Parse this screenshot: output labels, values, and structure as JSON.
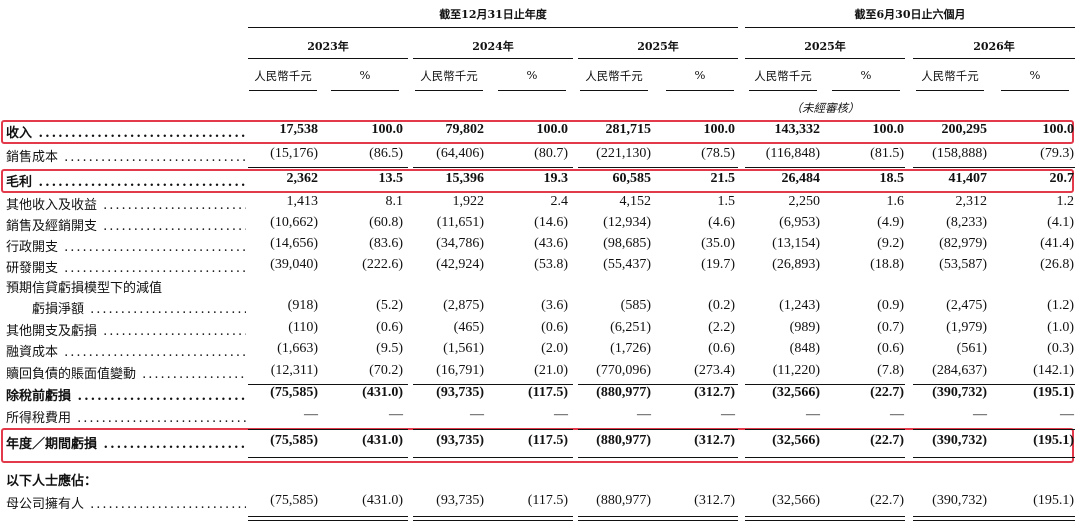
{
  "header": {
    "group1": "截至12月31日止年度",
    "group2": "截至6月30日止六個月",
    "years": [
      "2023年",
      "2024年",
      "2025年",
      "2025年",
      "2026年"
    ],
    "unit_rmb": "人民幣千元",
    "unit_pct": "%",
    "unaudited": "（未經審核）"
  },
  "rows": [
    {
      "label": "收入",
      "values": [
        "17,538",
        "100.0",
        "79,802",
        "100.0",
        "281,715",
        "100.0",
        "143,332",
        "100.0",
        "200,295",
        "100.0"
      ]
    },
    {
      "label": "銷售成本",
      "values": [
        "(15,176)",
        "(86.5)",
        "(64,406)",
        "(80.7)",
        "(221,130)",
        "(78.5)",
        "(116,848)",
        "(81.5)",
        "(158,888)",
        "(79.3)"
      ]
    },
    {
      "label": "毛利",
      "values": [
        "2,362",
        "13.5",
        "15,396",
        "19.3",
        "60,585",
        "21.5",
        "26,484",
        "18.5",
        "41,407",
        "20.7"
      ]
    },
    {
      "label": "其他收入及收益",
      "values": [
        "1,413",
        "8.1",
        "1,922",
        "2.4",
        "4,152",
        "1.5",
        "2,250",
        "1.6",
        "2,312",
        "1.2"
      ]
    },
    {
      "label": "銷售及經銷開支",
      "values": [
        "(10,662)",
        "(60.8)",
        "(11,651)",
        "(14.6)",
        "(12,934)",
        "(4.6)",
        "(6,953)",
        "(4.9)",
        "(8,233)",
        "(4.1)"
      ]
    },
    {
      "label": "行政開支",
      "values": [
        "(14,656)",
        "(83.6)",
        "(34,786)",
        "(43.6)",
        "(98,685)",
        "(35.0)",
        "(13,154)",
        "(9.2)",
        "(82,979)",
        "(41.4)"
      ]
    },
    {
      "label": "研發開支",
      "values": [
        "(39,040)",
        "(222.6)",
        "(42,924)",
        "(53.8)",
        "(55,437)",
        "(19.7)",
        "(26,893)",
        "(18.8)",
        "(53,587)",
        "(26.8)"
      ]
    },
    {
      "label": "預期信貸虧損模型下的減值",
      "values": []
    },
    {
      "label": "虧損淨額",
      "values": [
        "(918)",
        "(5.2)",
        "(2,875)",
        "(3.6)",
        "(585)",
        "(0.2)",
        "(1,243)",
        "(0.9)",
        "(2,475)",
        "(1.2)"
      ]
    },
    {
      "label": "其他開支及虧損",
      "values": [
        "(110)",
        "(0.6)",
        "(465)",
        "(0.6)",
        "(6,251)",
        "(2.2)",
        "(989)",
        "(0.7)",
        "(1,979)",
        "(1.0)"
      ]
    },
    {
      "label": "融資成本",
      "values": [
        "(1,663)",
        "(9.5)",
        "(1,561)",
        "(2.0)",
        "(1,726)",
        "(0.6)",
        "(848)",
        "(0.6)",
        "(561)",
        "(0.3)"
      ]
    },
    {
      "label": "贖回負債的賬面值變動",
      "values": [
        "(12,311)",
        "(70.2)",
        "(16,791)",
        "(21.0)",
        "(770,096)",
        "(273.4)",
        "(11,220)",
        "(7.8)",
        "(284,637)",
        "(142.1)"
      ]
    },
    {
      "label": "除稅前虧損",
      "values": [
        "(75,585)",
        "(431.0)",
        "(93,735)",
        "(117.5)",
        "(880,977)",
        "(312.7)",
        "(32,566)",
        "(22.7)",
        "(390,732)",
        "(195.1)"
      ]
    },
    {
      "label": "所得稅費用",
      "values": [
        "—",
        "—",
        "—",
        "—",
        "—",
        "—",
        "—",
        "—",
        "—",
        "—"
      ]
    },
    {
      "label": "年度／期間虧損",
      "values": [
        "(75,585)",
        "(431.0)",
        "(93,735)",
        "(117.5)",
        "(880,977)",
        "(312.7)",
        "(32,566)",
        "(22.7)",
        "(390,732)",
        "(195.1)"
      ]
    },
    {
      "label": "以下人士應佔：",
      "values": []
    },
    {
      "label": "母公司擁有人",
      "values": [
        "(75,585)",
        "(431.0)",
        "(93,735)",
        "(117.5)",
        "(880,977)",
        "(312.7)",
        "(32,566)",
        "(22.7)",
        "(390,732)",
        "(195.1)"
      ]
    }
  ]
}
